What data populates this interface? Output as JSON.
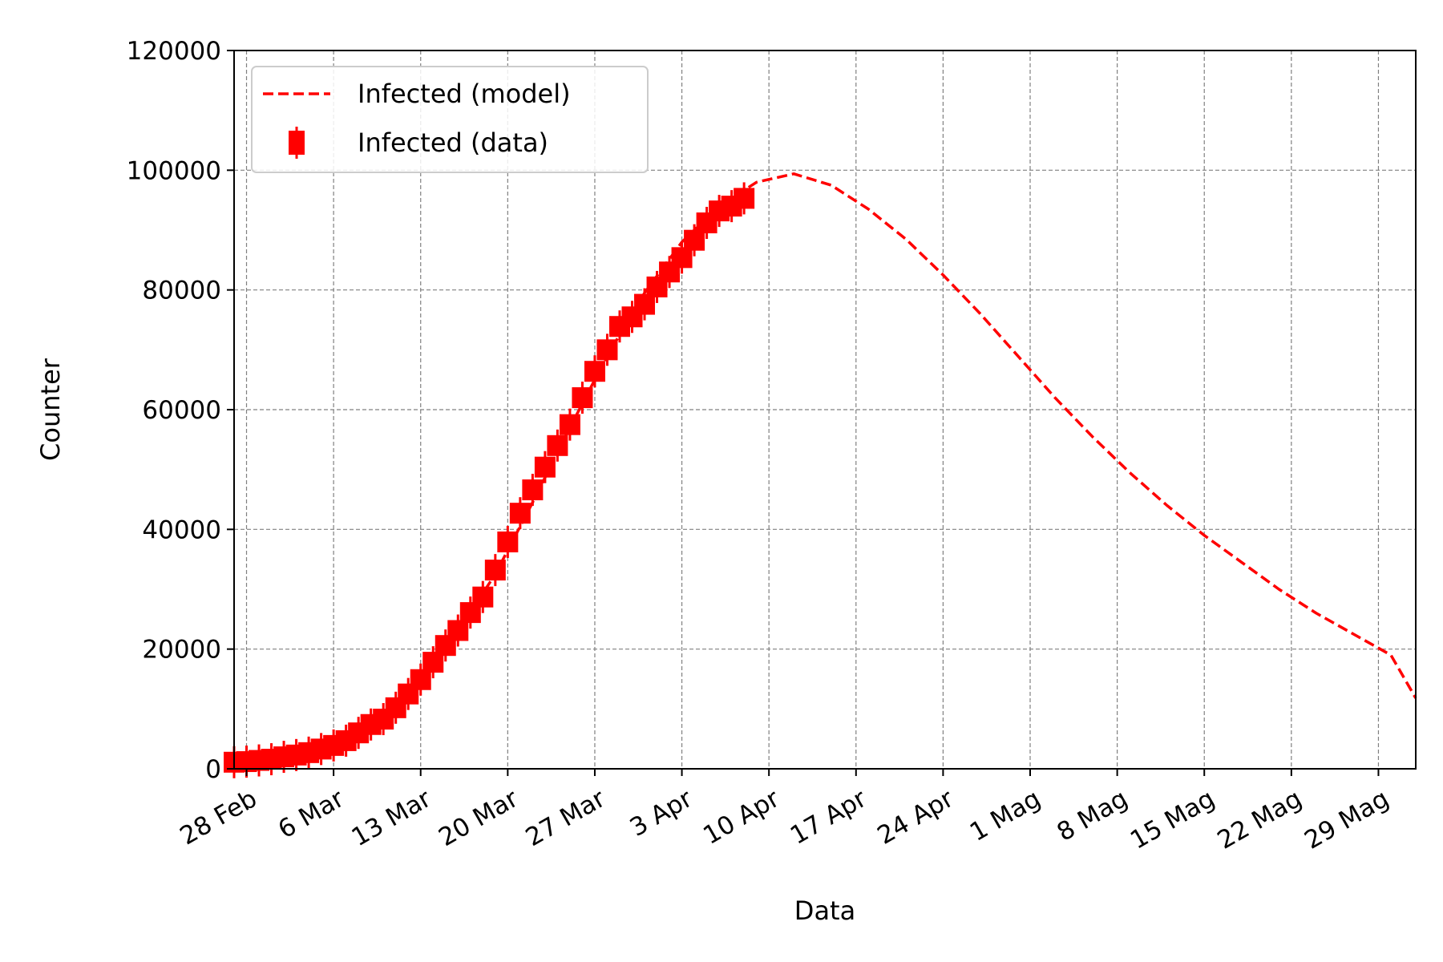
{
  "chart_data": {
    "type": "line",
    "title": "",
    "xlabel": "Data",
    "ylabel": "Counter",
    "ylim": [
      0,
      120000
    ],
    "y_ticks": [
      0,
      20000,
      40000,
      60000,
      80000,
      100000,
      120000
    ],
    "x_range": [
      "2020-02-27",
      "2020-06-01"
    ],
    "x_ticks": [
      {
        "date": "2020-02-28",
        "label": "28 Feb"
      },
      {
        "date": "2020-03-06",
        "label": "6 Mar"
      },
      {
        "date": "2020-03-13",
        "label": "13 Mar"
      },
      {
        "date": "2020-03-20",
        "label": "20 Mar"
      },
      {
        "date": "2020-03-27",
        "label": "27 Mar"
      },
      {
        "date": "2020-04-03",
        "label": "3 Apr"
      },
      {
        "date": "2020-04-10",
        "label": "10 Apr"
      },
      {
        "date": "2020-04-17",
        "label": "17 Apr"
      },
      {
        "date": "2020-04-24",
        "label": "24 Apr"
      },
      {
        "date": "2020-05-01",
        "label": "1 Mag"
      },
      {
        "date": "2020-05-08",
        "label": "8 Mag"
      },
      {
        "date": "2020-05-15",
        "label": "15 Mag"
      },
      {
        "date": "2020-05-22",
        "label": "22 Mag"
      },
      {
        "date": "2020-05-29",
        "label": "29 Mag"
      }
    ],
    "grid": true,
    "legend_position": "top-left",
    "series": [
      {
        "name": "Infected (model)",
        "style": "dashed-line",
        "color": "#ff0000",
        "points": [
          {
            "x": "2020-02-27",
            "y": 1000
          },
          {
            "x": "2020-03-01",
            "y": 1500
          },
          {
            "x": "2020-03-04",
            "y": 2900
          },
          {
            "x": "2020-03-07",
            "y": 5500
          },
          {
            "x": "2020-03-10",
            "y": 9500
          },
          {
            "x": "2020-03-13",
            "y": 15000
          },
          {
            "x": "2020-03-16",
            "y": 23000
          },
          {
            "x": "2020-03-19",
            "y": 32500
          },
          {
            "x": "2020-03-22",
            "y": 44500
          },
          {
            "x": "2020-03-25",
            "y": 57000
          },
          {
            "x": "2020-03-28",
            "y": 69000
          },
          {
            "x": "2020-03-31",
            "y": 79500
          },
          {
            "x": "2020-04-03",
            "y": 88000
          },
          {
            "x": "2020-04-06",
            "y": 94000
          },
          {
            "x": "2020-04-09",
            "y": 98000
          },
          {
            "x": "2020-04-12",
            "y": 99400
          },
          {
            "x": "2020-04-15",
            "y": 97500
          },
          {
            "x": "2020-04-18",
            "y": 93500
          },
          {
            "x": "2020-04-21",
            "y": 88500
          },
          {
            "x": "2020-04-24",
            "y": 82500
          },
          {
            "x": "2020-04-27",
            "y": 76000
          },
          {
            "x": "2020-04-30",
            "y": 69000
          },
          {
            "x": "2020-05-03",
            "y": 62000
          },
          {
            "x": "2020-05-06",
            "y": 55500
          },
          {
            "x": "2020-05-09",
            "y": 49500
          },
          {
            "x": "2020-05-12",
            "y": 44000
          },
          {
            "x": "2020-05-15",
            "y": 39000
          },
          {
            "x": "2020-05-18",
            "y": 34500
          },
          {
            "x": "2020-05-21",
            "y": 30000
          },
          {
            "x": "2020-05-24",
            "y": 26000
          },
          {
            "x": "2020-05-27",
            "y": 22500
          },
          {
            "x": "2020-05-30",
            "y": 19000
          },
          {
            "x": "2020-06-01",
            "y": 11800
          }
        ]
      },
      {
        "name": "Infected (data)",
        "style": "square-markers-errorbars",
        "color": "#ff0000",
        "points": [
          {
            "x": "2020-02-27",
            "y": 1100
          },
          {
            "x": "2020-02-28",
            "y": 1200
          },
          {
            "x": "2020-02-29",
            "y": 1400
          },
          {
            "x": "2020-03-01",
            "y": 1600
          },
          {
            "x": "2020-03-02",
            "y": 2000
          },
          {
            "x": "2020-03-03",
            "y": 2300
          },
          {
            "x": "2020-03-04",
            "y": 2700
          },
          {
            "x": "2020-03-05",
            "y": 3300
          },
          {
            "x": "2020-03-06",
            "y": 3900
          },
          {
            "x": "2020-03-07",
            "y": 4700
          },
          {
            "x": "2020-03-08",
            "y": 6000
          },
          {
            "x": "2020-03-09",
            "y": 7400
          },
          {
            "x": "2020-03-10",
            "y": 8300
          },
          {
            "x": "2020-03-11",
            "y": 10200
          },
          {
            "x": "2020-03-12",
            "y": 12500
          },
          {
            "x": "2020-03-13",
            "y": 14900
          },
          {
            "x": "2020-03-14",
            "y": 17800
          },
          {
            "x": "2020-03-15",
            "y": 20600
          },
          {
            "x": "2020-03-16",
            "y": 23100
          },
          {
            "x": "2020-03-17",
            "y": 26100
          },
          {
            "x": "2020-03-18",
            "y": 28700
          },
          {
            "x": "2020-03-19",
            "y": 33200
          },
          {
            "x": "2020-03-20",
            "y": 37900
          },
          {
            "x": "2020-03-21",
            "y": 42700
          },
          {
            "x": "2020-03-22",
            "y": 46600
          },
          {
            "x": "2020-03-23",
            "y": 50400
          },
          {
            "x": "2020-03-24",
            "y": 54000
          },
          {
            "x": "2020-03-25",
            "y": 57500
          },
          {
            "x": "2020-03-26",
            "y": 62000
          },
          {
            "x": "2020-03-27",
            "y": 66400
          },
          {
            "x": "2020-03-28",
            "y": 70000
          },
          {
            "x": "2020-03-29",
            "y": 73900
          },
          {
            "x": "2020-03-30",
            "y": 75500
          },
          {
            "x": "2020-03-31",
            "y": 77600
          },
          {
            "x": "2020-04-01",
            "y": 80500
          },
          {
            "x": "2020-04-02",
            "y": 83000
          },
          {
            "x": "2020-04-03",
            "y": 85400
          },
          {
            "x": "2020-04-04",
            "y": 88300
          },
          {
            "x": "2020-04-05",
            "y": 91200
          },
          {
            "x": "2020-04-06",
            "y": 93200
          },
          {
            "x": "2020-04-07",
            "y": 94000
          },
          {
            "x": "2020-04-08",
            "y": 95300
          }
        ]
      }
    ]
  }
}
